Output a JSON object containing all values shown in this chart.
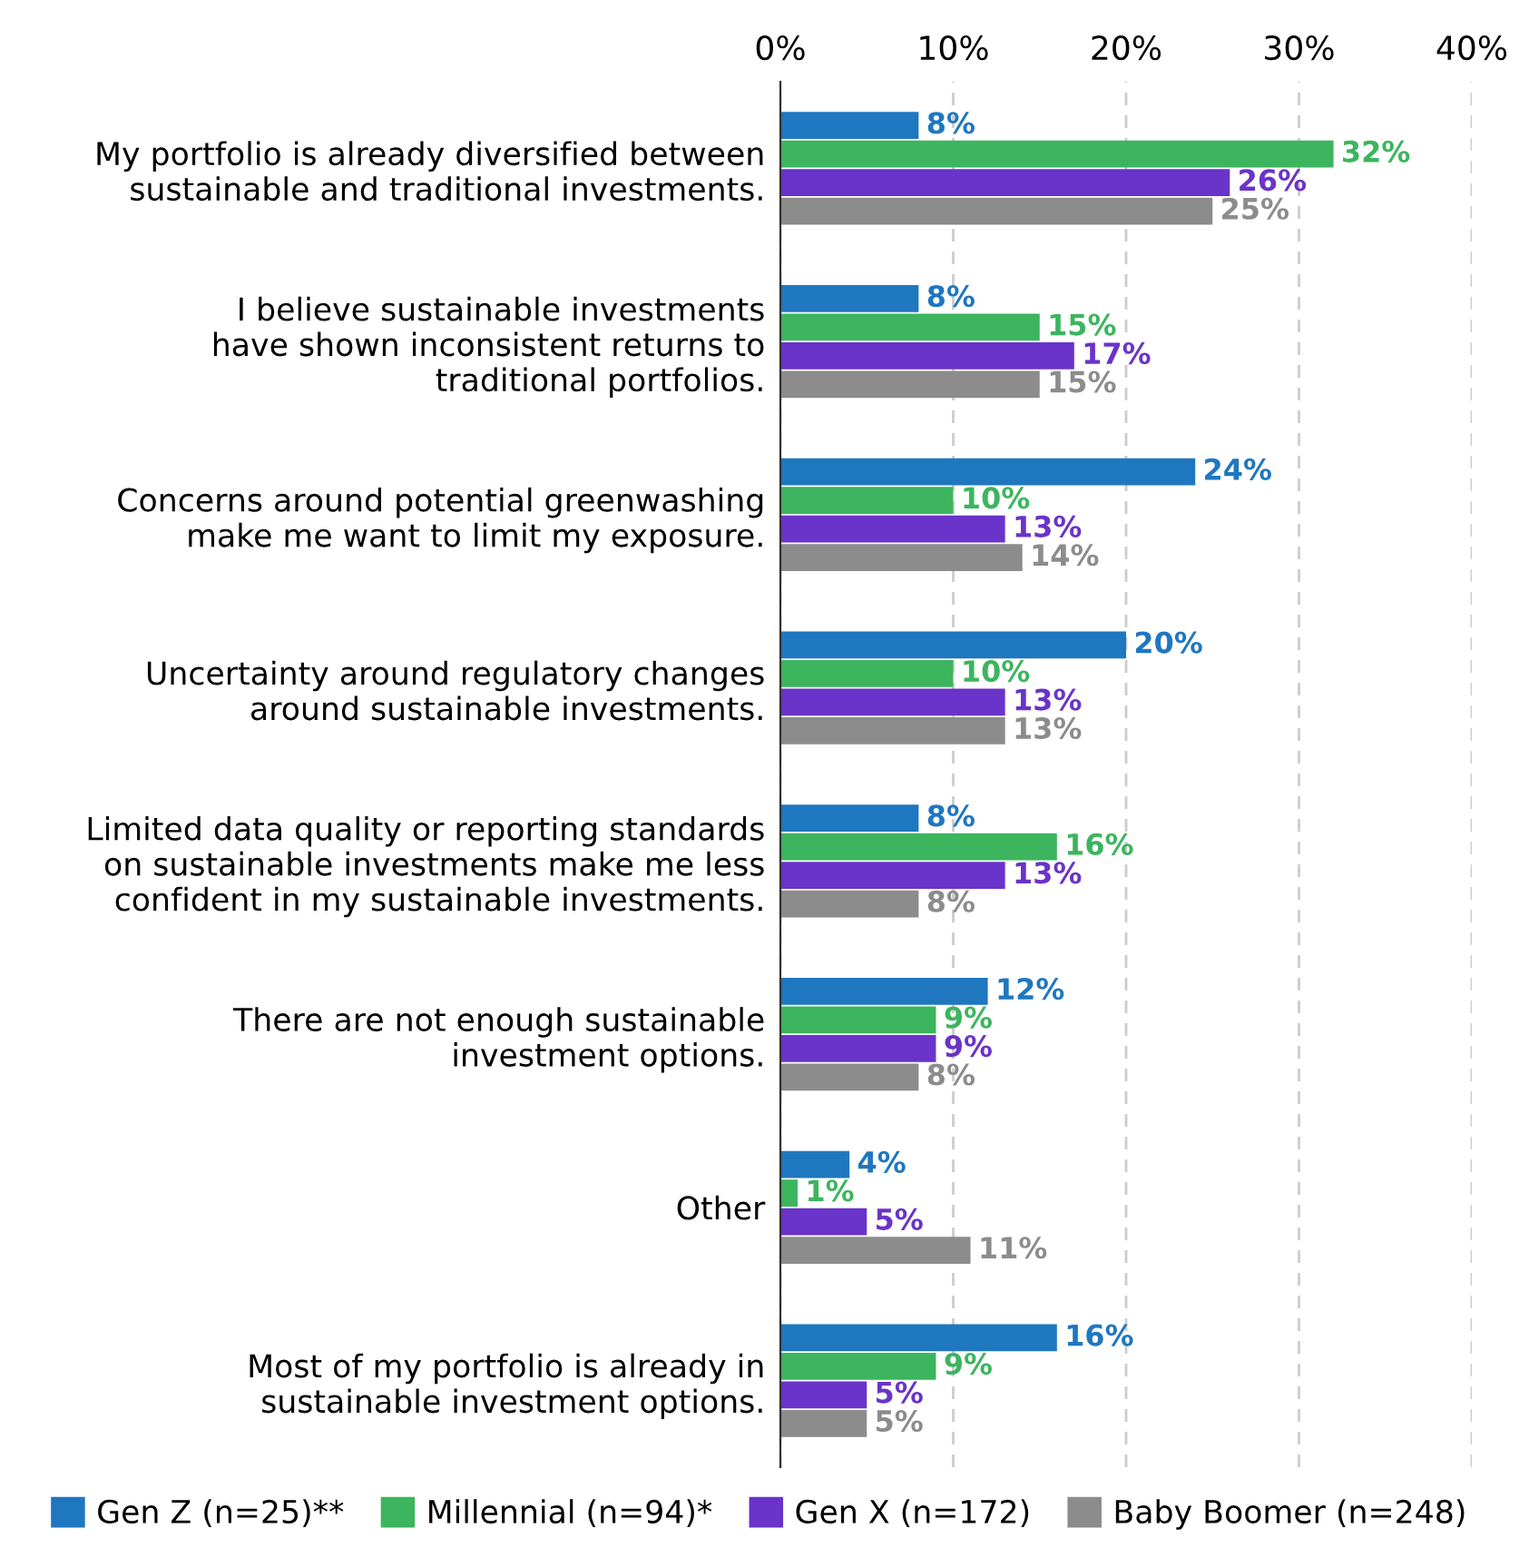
{
  "chart_data": {
    "type": "bar",
    "orientation": "horizontal",
    "categories": [
      "My portfolio is already diversified between\nsustainable and traditional investments.",
      "I believe sustainable investments\nhave shown inconsistent returns to\ntraditional portfolios.",
      "Concerns around potential greenwashing\nmake me want to limit my exposure.",
      "Uncertainty around regulatory changes\naround sustainable investments.",
      "Limited data quality or reporting standards\non sustainable investments make me less\nconfident in my sustainable investments.",
      "There are not enough sustainable\ninvestment options.",
      "Other",
      "Most of my portfolio is already in\nsustainable investment options."
    ],
    "series": [
      {
        "name": "Gen Z (n=25)**",
        "color": "#1f77c0",
        "values": [
          8,
          8,
          24,
          20,
          8,
          12,
          4,
          16
        ],
        "value_labels": [
          "8%",
          "8%",
          "24%",
          "20%",
          "8%",
          "12%",
          "4%",
          "16%"
        ]
      },
      {
        "name": "Millennial (n=94)*",
        "color": "#3cb55e",
        "values": [
          32,
          15,
          10,
          10,
          16,
          9,
          1,
          9
        ],
        "value_labels": [
          "32%",
          "15%",
          "10%",
          "10%",
          "16%",
          "9%",
          "1%",
          "9%"
        ]
      },
      {
        "name": "Gen X (n=172)",
        "color": "#6a33c9",
        "values": [
          26,
          17,
          13,
          13,
          13,
          9,
          5,
          5
        ],
        "value_labels": [
          "26%",
          "17%",
          "13%",
          "13%",
          "13%",
          "9%",
          "5%",
          "5%"
        ]
      },
      {
        "name": "Baby Boomer (n=248)",
        "color": "#8c8c8c",
        "values": [
          25,
          15,
          14,
          13,
          8,
          8,
          11,
          5
        ],
        "value_labels": [
          "25%",
          "15%",
          "14%",
          "13%",
          "8%",
          "8%",
          "11%",
          "5%"
        ]
      }
    ],
    "xlim": [
      0,
      40
    ],
    "xticks": [
      {
        "value": 0,
        "label": "0%"
      },
      {
        "value": 10,
        "label": "10%"
      },
      {
        "value": 20,
        "label": "20%"
      },
      {
        "value": 30,
        "label": "30%"
      },
      {
        "value": 40,
        "label": "40%"
      }
    ],
    "grid": "x",
    "legend": "bottom"
  }
}
